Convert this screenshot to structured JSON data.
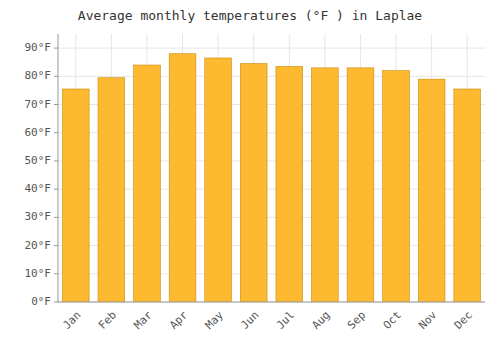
{
  "chart_data": {
    "type": "bar",
    "title": "Average monthly temperatures (°F ) in Laplae",
    "categories": [
      "Jan",
      "Feb",
      "Mar",
      "Apr",
      "May",
      "Jun",
      "Jul",
      "Aug",
      "Sep",
      "Oct",
      "Nov",
      "Dec"
    ],
    "values": [
      75.5,
      79.5,
      84.0,
      88.0,
      86.5,
      84.5,
      83.5,
      83.0,
      83.0,
      82.0,
      79.0,
      75.5
    ],
    "color": "#FDB930",
    "ylim": [
      0,
      95
    ],
    "yticks": [
      {
        "value": 0,
        "label": "0°F"
      },
      {
        "value": 10,
        "label": "10°F"
      },
      {
        "value": 20,
        "label": "20°F"
      },
      {
        "value": 30,
        "label": "30°F"
      },
      {
        "value": 40,
        "label": "40°F"
      },
      {
        "value": 50,
        "label": "50°F"
      },
      {
        "value": 60,
        "label": "60°F"
      },
      {
        "value": 70,
        "label": "70°F"
      },
      {
        "value": 80,
        "label": "80°F"
      },
      {
        "value": 90,
        "label": "90°F"
      }
    ],
    "grid": true
  }
}
